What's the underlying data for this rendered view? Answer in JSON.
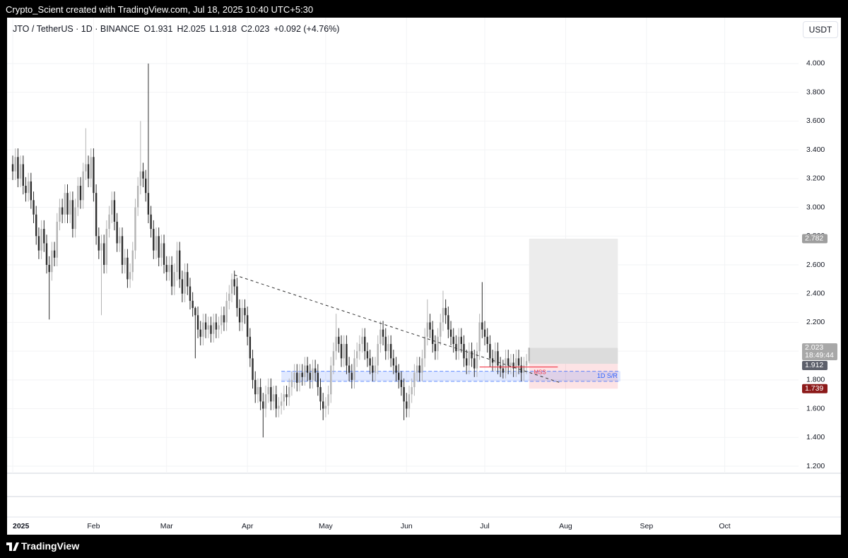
{
  "header": "Crypto_Scient created with TradingView.com, Jul 18, 2025 10:40 UTC+5:30",
  "legend": {
    "symbol": "JTO / TetherUS · 1D · BINANCE",
    "values": [
      "O1.931",
      "H2.025",
      "L1.918",
      "C2.023",
      "+0.092 (+4.76%)"
    ]
  },
  "currency": "USDT",
  "footer": "TradingView",
  "chart_data": {
    "type": "candlestick",
    "up_color": "#b4b4b4",
    "down_color": "#2e2e2e",
    "grid": true,
    "xlim": [
      -2.17,
      301.3
    ],
    "xticks": [
      {
        "value": 0,
        "label": "2025"
      },
      {
        "value": 31,
        "label": "Feb"
      },
      {
        "value": 59,
        "label": "Mar"
      },
      {
        "value": 90,
        "label": "Apr"
      },
      {
        "value": 120,
        "label": "May"
      },
      {
        "value": 151,
        "label": "Jun"
      },
      {
        "value": 181,
        "label": "Jul"
      },
      {
        "value": 212,
        "label": "Aug"
      },
      {
        "value": 243,
        "label": "Sep"
      },
      {
        "value": 273,
        "label": "Oct"
      }
    ],
    "ylim": [
      1.151,
      4.319
    ],
    "yticks": [
      {
        "value": 1.2,
        "label": "1.200"
      },
      {
        "value": 1.4,
        "label": "1.400"
      },
      {
        "value": 1.6,
        "label": "1.600"
      },
      {
        "value": 1.8,
        "label": "1.800"
      },
      {
        "value": 2.0,
        "label": "2.000"
      },
      {
        "value": 2.2,
        "label": "2.200"
      },
      {
        "value": 2.4,
        "label": "2.400"
      },
      {
        "value": 2.6,
        "label": "2.600"
      },
      {
        "value": 2.8,
        "label": "2.800"
      },
      {
        "value": 3.0,
        "label": "3.000"
      },
      {
        "value": 3.2,
        "label": "3.200"
      },
      {
        "value": 3.4,
        "label": "3.400"
      },
      {
        "value": 3.6,
        "label": "3.600"
      },
      {
        "value": 3.8,
        "label": "3.800"
      },
      {
        "value": 4.0,
        "label": "4.000"
      }
    ],
    "open": [
      3.3,
      3.25,
      3.35,
      3.2,
      3.3,
      3.15,
      3.1,
      3.18,
      3.05,
      2.95,
      2.8,
      2.7,
      2.85,
      2.75,
      2.6,
      2.55,
      2.7,
      2.65,
      2.9,
      3.0,
      2.95,
      3.1,
      2.95,
      3.05,
      2.85,
      3.0,
      3.15,
      3.05,
      3.25,
      3.3,
      3.2,
      3.35,
      3.1,
      2.8,
      2.7,
      2.75,
      2.6,
      2.85,
      2.95,
      3.05,
      2.9,
      2.75,
      2.8,
      2.6,
      2.65,
      2.5,
      2.55,
      2.7,
      3.0,
      3.15,
      3.25,
      3.2,
      3.1,
      2.95,
      2.85,
      2.7,
      2.8,
      2.65,
      2.75,
      2.6,
      2.55,
      2.6,
      2.45,
      2.55,
      2.7,
      2.5,
      2.4,
      2.55,
      2.45,
      2.35,
      2.3,
      2.25,
      2.15,
      2.1,
      2.2,
      2.15,
      2.18,
      2.12,
      2.2,
      2.15,
      2.18,
      2.25,
      2.2,
      2.35,
      2.4,
      2.5,
      2.45,
      2.3,
      2.2,
      2.3,
      2.25,
      2.1,
      1.95,
      1.8,
      1.7,
      1.75,
      1.65,
      1.6,
      1.7,
      1.75,
      1.65,
      1.7,
      1.6,
      1.62,
      1.65,
      1.7,
      1.68,
      1.75,
      1.8,
      1.85,
      1.78,
      1.85,
      1.82,
      1.9,
      1.85,
      1.8,
      1.88,
      1.85,
      1.75,
      1.65,
      1.6,
      1.62,
      1.7,
      1.9,
      2.0,
      2.1,
      2.05,
      1.95,
      2.05,
      1.9,
      1.85,
      1.8,
      1.95,
      2.0,
      2.05,
      2.1,
      2.0,
      1.95,
      1.9,
      1.85,
      1.9,
      2.05,
      2.15,
      2.1,
      2.0,
      2.05,
      1.95,
      1.9,
      1.85,
      1.8,
      1.75,
      1.65,
      1.6,
      1.7,
      1.75,
      1.85,
      1.9,
      1.85,
      1.95,
      2.1,
      2.2,
      2.15,
      2.05,
      2.0,
      2.1,
      2.2,
      2.3,
      2.25,
      2.15,
      2.1,
      2.05,
      2.0,
      2.1,
      2.05,
      1.95,
      1.9,
      2.0,
      1.95,
      1.88,
      2.0,
      2.2,
      2.15,
      2.1,
      2.05,
      1.95,
      1.92,
      2.0,
      1.9,
      1.88,
      1.85,
      1.95,
      1.9,
      1.92,
      1.88,
      1.95,
      1.9,
      1.85,
      1.9,
      1.931
    ],
    "high": [
      3.36,
      3.41,
      3.41,
      3.36,
      3.36,
      3.21,
      3.24,
      3.24,
      3.11,
      3.01,
      2.86,
      2.91,
      2.91,
      2.81,
      2.66,
      2.76,
      2.76,
      2.96,
      3.06,
      3.06,
      3.16,
      3.16,
      3.11,
      3.11,
      3.06,
      3.21,
      3.21,
      3.31,
      3.55,
      3.36,
      3.41,
      3.41,
      3.16,
      2.86,
      2.81,
      2.81,
      2.91,
      3.01,
      3.11,
      3.11,
      2.96,
      2.86,
      2.86,
      2.71,
      2.71,
      2.61,
      2.76,
      3.06,
      3.21,
      3.6,
      3.31,
      3.26,
      4.0,
      3.01,
      2.91,
      2.86,
      2.86,
      2.81,
      2.81,
      2.66,
      2.66,
      2.66,
      2.61,
      2.76,
      2.76,
      2.56,
      2.61,
      2.61,
      2.51,
      2.41,
      2.31,
      2.31,
      2.21,
      2.26,
      2.26,
      2.24,
      2.24,
      2.26,
      2.26,
      2.24,
      2.31,
      2.31,
      2.41,
      2.46,
      2.54,
      2.56,
      2.51,
      2.36,
      2.36,
      2.36,
      2.31,
      2.16,
      2.01,
      1.86,
      1.81,
      1.81,
      1.71,
      1.76,
      1.81,
      1.81,
      1.76,
      1.76,
      1.68,
      1.71,
      1.76,
      1.76,
      1.81,
      1.86,
      1.91,
      1.91,
      1.91,
      1.91,
      1.96,
      1.96,
      1.91,
      1.94,
      1.94,
      1.91,
      1.81,
      1.71,
      1.68,
      1.76,
      1.96,
      2.06,
      2.26,
      2.16,
      2.11,
      2.11,
      2.11,
      1.96,
      1.91,
      2.01,
      2.06,
      2.11,
      2.16,
      2.16,
      2.06,
      2.01,
      1.96,
      1.96,
      2.11,
      2.21,
      2.21,
      2.16,
      2.11,
      2.11,
      2.01,
      1.96,
      1.91,
      1.86,
      1.81,
      1.71,
      1.76,
      1.81,
      1.91,
      1.96,
      1.96,
      2.01,
      2.16,
      2.36,
      2.26,
      2.21,
      2.11,
      2.16,
      2.26,
      2.42,
      2.36,
      2.31,
      2.21,
      2.16,
      2.11,
      2.16,
      2.16,
      2.11,
      2.01,
      2.06,
      2.06,
      2.01,
      2.06,
      2.26,
      2.48,
      2.21,
      2.16,
      2.11,
      2.01,
      2.06,
      2.06,
      1.96,
      1.94,
      2.01,
      2.01,
      1.98,
      1.98,
      2.01,
      2.01,
      1.96,
      1.96,
      1.98,
      2.025
    ],
    "low": [
      3.19,
      3.19,
      3.14,
      3.14,
      3.09,
      3.04,
      3.04,
      2.99,
      2.89,
      2.74,
      2.64,
      2.64,
      2.69,
      2.54,
      2.22,
      2.49,
      2.59,
      2.59,
      2.84,
      2.89,
      2.89,
      2.89,
      2.89,
      2.79,
      2.79,
      2.94,
      2.99,
      2.99,
      3.19,
      3.14,
      3.14,
      3.04,
      2.74,
      2.64,
      2.25,
      2.54,
      2.54,
      2.79,
      2.89,
      2.84,
      2.69,
      2.69,
      2.54,
      2.54,
      2.44,
      2.44,
      2.49,
      2.64,
      2.94,
      3.09,
      3.14,
      3.04,
      2.89,
      2.79,
      2.64,
      2.64,
      2.59,
      2.59,
      2.54,
      2.49,
      2.49,
      2.39,
      2.39,
      2.49,
      2.44,
      2.34,
      2.34,
      2.39,
      2.29,
      2.24,
      1.95,
      2.09,
      2.04,
      2.04,
      2.09,
      2.09,
      2.06,
      2.06,
      2.09,
      2.09,
      2.12,
      2.14,
      2.14,
      2.29,
      2.34,
      2.39,
      2.24,
      2.14,
      2.14,
      2.19,
      2.04,
      1.89,
      1.74,
      1.64,
      1.64,
      1.59,
      1.4,
      1.54,
      1.64,
      1.59,
      1.59,
      1.54,
      1.54,
      1.56,
      1.59,
      1.62,
      1.62,
      1.69,
      1.74,
      1.72,
      1.72,
      1.76,
      1.76,
      1.79,
      1.74,
      1.74,
      1.79,
      1.69,
      1.59,
      1.52,
      1.54,
      1.56,
      1.64,
      1.84,
      1.94,
      1.99,
      1.89,
      1.89,
      1.84,
      1.79,
      1.74,
      1.74,
      1.89,
      1.94,
      1.99,
      1.94,
      1.89,
      1.84,
      1.79,
      1.79,
      1.84,
      1.99,
      2.04,
      1.94,
      1.94,
      1.89,
      1.84,
      1.79,
      1.74,
      1.69,
      1.52,
      1.54,
      1.54,
      1.64,
      1.69,
      1.79,
      1.79,
      1.79,
      1.89,
      2.04,
      2.09,
      1.99,
      1.94,
      1.94,
      2.04,
      2.14,
      2.19,
      2.09,
      2.04,
      1.99,
      1.94,
      1.94,
      1.99,
      1.89,
      1.84,
      1.84,
      1.89,
      1.82,
      1.82,
      1.94,
      2.09,
      2.04,
      1.99,
      1.89,
      1.86,
      1.86,
      1.84,
      1.82,
      1.81,
      1.81,
      1.84,
      1.84,
      1.82,
      1.82,
      1.84,
      1.79,
      1.79,
      1.84,
      1.918
    ],
    "close": [
      3.25,
      3.35,
      3.2,
      3.3,
      3.15,
      3.1,
      3.18,
      3.05,
      2.95,
      2.8,
      2.7,
      2.85,
      2.75,
      2.6,
      2.55,
      2.7,
      2.65,
      2.9,
      3.0,
      2.95,
      3.1,
      2.95,
      3.05,
      2.85,
      3.0,
      3.15,
      3.05,
      3.25,
      3.3,
      3.2,
      3.35,
      3.1,
      2.8,
      2.7,
      2.75,
      2.6,
      2.85,
      2.95,
      3.05,
      2.9,
      2.75,
      2.8,
      2.6,
      2.65,
      2.5,
      2.55,
      2.7,
      3.0,
      3.15,
      3.25,
      3.2,
      3.1,
      2.95,
      2.85,
      2.7,
      2.8,
      2.65,
      2.75,
      2.6,
      2.55,
      2.6,
      2.45,
      2.55,
      2.7,
      2.5,
      2.4,
      2.55,
      2.45,
      2.35,
      2.3,
      2.25,
      2.15,
      2.1,
      2.2,
      2.15,
      2.18,
      2.12,
      2.2,
      2.15,
      2.18,
      2.25,
      2.2,
      2.35,
      2.4,
      2.5,
      2.45,
      2.3,
      2.2,
      2.3,
      2.25,
      2.1,
      1.95,
      1.8,
      1.7,
      1.75,
      1.65,
      1.6,
      1.7,
      1.75,
      1.65,
      1.7,
      1.6,
      1.62,
      1.65,
      1.7,
      1.68,
      1.75,
      1.8,
      1.85,
      1.78,
      1.85,
      1.82,
      1.9,
      1.85,
      1.8,
      1.88,
      1.85,
      1.75,
      1.65,
      1.6,
      1.62,
      1.7,
      1.9,
      2.0,
      2.1,
      2.05,
      1.95,
      2.05,
      1.9,
      1.85,
      1.8,
      1.95,
      2.0,
      2.05,
      2.1,
      2.0,
      1.95,
      1.9,
      1.85,
      1.9,
      2.05,
      2.15,
      2.1,
      2.0,
      2.05,
      1.95,
      1.9,
      1.85,
      1.8,
      1.75,
      1.65,
      1.6,
      1.7,
      1.75,
      1.85,
      1.9,
      1.85,
      1.95,
      2.1,
      2.2,
      2.15,
      2.05,
      2.0,
      2.1,
      2.2,
      2.3,
      2.25,
      2.15,
      2.1,
      2.05,
      2.0,
      2.1,
      2.05,
      1.95,
      1.9,
      2.0,
      1.95,
      1.88,
      2.0,
      2.2,
      2.15,
      2.1,
      2.05,
      1.95,
      1.92,
      2.0,
      1.9,
      1.88,
      1.85,
      1.95,
      1.9,
      1.92,
      1.88,
      1.95,
      1.9,
      1.85,
      1.9,
      1.931,
      2.023
    ],
    "trendline": {
      "x": [
        85,
        210
      ],
      "y": [
        2.53,
        1.78
      ]
    },
    "sr_zone": {
      "label": "1D S/R",
      "x": [
        103,
        233
      ],
      "y": [
        1.79,
        1.86
      ],
      "color": "#2962ff"
    },
    "mss": {
      "label": "MSS",
      "x": [
        179,
        209
      ],
      "y": 1.89,
      "color": "#f23645"
    },
    "position": {
      "x": [
        198,
        232
      ],
      "target": 2.782,
      "entry": 1.912,
      "stop": 1.739
    },
    "price_tags": [
      {
        "value": 2.782,
        "color": "#9e9e9e"
      },
      {
        "value": 2.023,
        "color": "#a8a8a8",
        "countdown": "18:49:44"
      },
      {
        "value": 1.912,
        "color": "#5d606b"
      },
      {
        "value": 1.739,
        "color": "#8c1a1a"
      }
    ]
  }
}
